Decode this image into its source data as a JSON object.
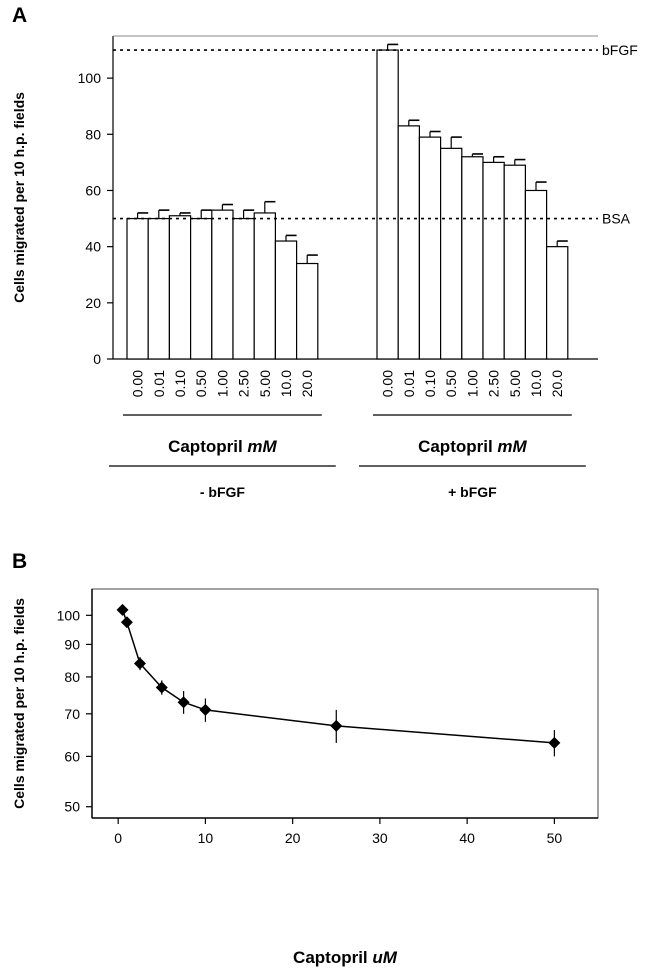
{
  "chart_data": [
    {
      "panel_label": "A",
      "type": "bar",
      "ylabel": "Cells migrated per 10 h.p. fields",
      "ylim": [
        0,
        115
      ],
      "yticks": [
        0,
        20,
        40,
        60,
        80,
        100
      ],
      "reference_lines": [
        {
          "label": "bFGF",
          "value": 110
        },
        {
          "label": "BSA",
          "value": 50
        }
      ],
      "groups": [
        {
          "group_label": "Captopril ",
          "group_unit": "mM",
          "condition": "- bFGF",
          "categories": [
            "0.00",
            "0.01",
            "0.10",
            "0.50",
            "1.00",
            "2.50",
            "5.00",
            "10.0",
            "20.0"
          ],
          "values": [
            50,
            50,
            51,
            50,
            53,
            50,
            52,
            42,
            34
          ],
          "errors": [
            2,
            3,
            1,
            3,
            2,
            3,
            4,
            2,
            3
          ]
        },
        {
          "group_label": "Captopril ",
          "group_unit": "mM",
          "condition": "+ bFGF",
          "categories": [
            "0.00",
            "0.01",
            "0.10",
            "0.50",
            "1.00",
            "2.50",
            "5.00",
            "10.0",
            "20.0"
          ],
          "values": [
            110,
            83,
            79,
            75,
            72,
            70,
            69,
            60,
            40
          ],
          "errors": [
            2,
            2,
            2,
            4,
            1,
            2,
            2,
            3,
            2
          ]
        }
      ]
    },
    {
      "panel_label": "B",
      "type": "line",
      "ylabel": "Cells migrated per 10 h.p. fields",
      "xlabel": "Captopril ",
      "xlabel_unit": "uM",
      "xlim": [
        -3,
        55
      ],
      "xticks": [
        0,
        10,
        20,
        30,
        40,
        50
      ],
      "ylim": [
        48,
        110
      ],
      "yticks": [
        50,
        60,
        70,
        80,
        90,
        100
      ],
      "points": [
        {
          "x": 0.5,
          "y": 102,
          "err": 1.5
        },
        {
          "x": 1,
          "y": 97.5,
          "err": 1
        },
        {
          "x": 2.5,
          "y": 84,
          "err": 2
        },
        {
          "x": 5,
          "y": 77,
          "err": 2
        },
        {
          "x": 7.5,
          "y": 73,
          "err": 3
        },
        {
          "x": 10,
          "y": 71,
          "err": 3
        },
        {
          "x": 25,
          "y": 67,
          "err": 4
        },
        {
          "x": 50,
          "y": 63,
          "err": 3
        }
      ]
    }
  ]
}
